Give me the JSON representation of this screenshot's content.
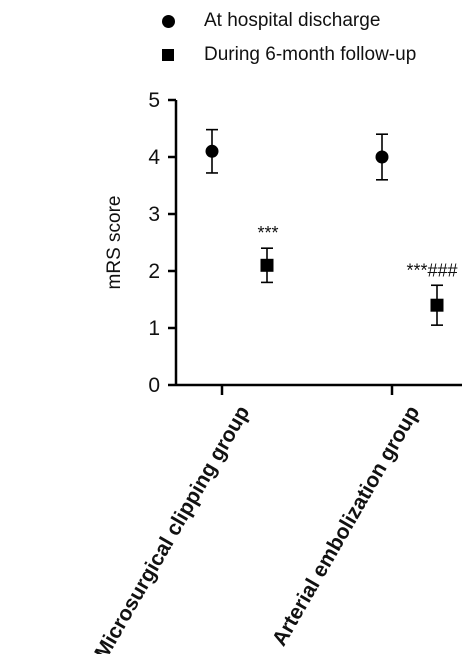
{
  "chart_data": {
    "type": "scatter",
    "ylabel": "mRS score",
    "xlabel": "",
    "ylim": [
      0,
      5
    ],
    "yticks": [
      "0",
      "1",
      "2",
      "3",
      "4",
      "5"
    ],
    "categories": [
      "Microsurgical clipping group",
      "Arterial embolization group"
    ],
    "series": [
      {
        "name": "At hospital discharge",
        "marker": "circle",
        "color": "#000000",
        "values": [
          4.1,
          4.0
        ],
        "errors": [
          0.38,
          0.4
        ]
      },
      {
        "name": "During 6-month follow-up",
        "marker": "square",
        "color": "#000000",
        "values": [
          2.1,
          1.4
        ],
        "errors": [
          0.3,
          0.35
        ]
      }
    ],
    "annotations": [
      "***",
      "***###"
    ],
    "legend_position": "top"
  }
}
